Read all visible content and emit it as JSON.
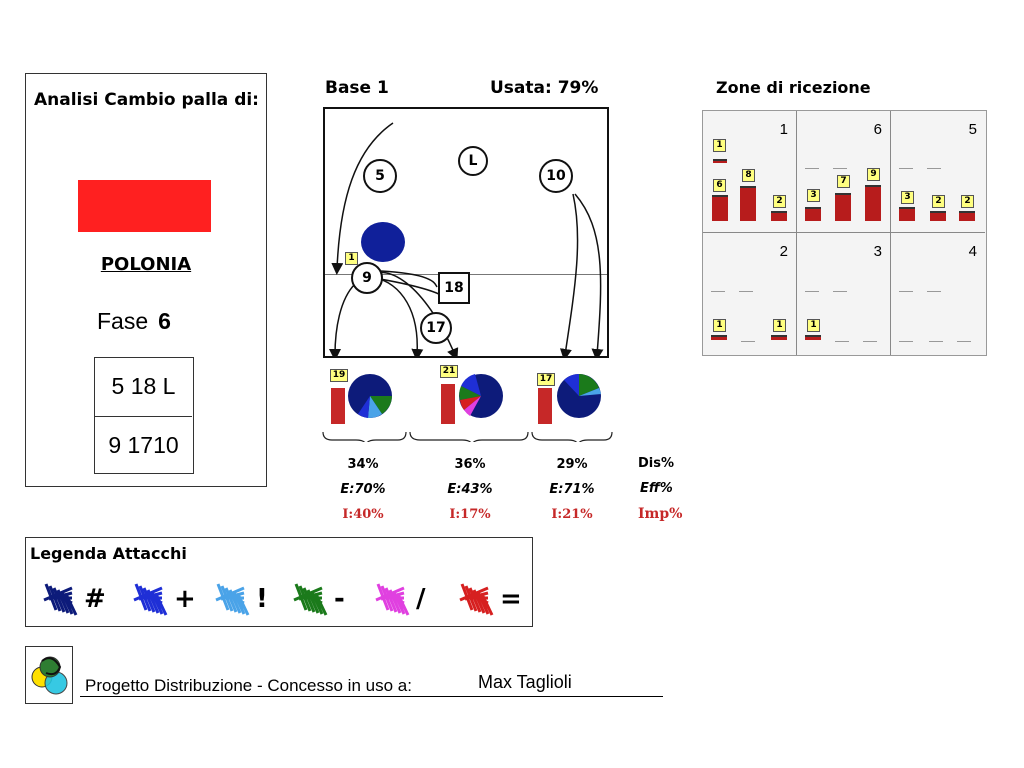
{
  "analysis": {
    "title": "Analisi Cambio palla di:",
    "team_color": "#ff2020",
    "team_name": "POLONIA",
    "fase_label": "Fase",
    "fase_value": "6",
    "rotation": [
      "5 18 L",
      "9 1710"
    ]
  },
  "base": {
    "label": "Base 1",
    "usata": "Usata: 79%"
  },
  "court": {
    "players": [
      "5",
      "L",
      "10",
      "9",
      "18",
      "17"
    ],
    "badge": "1"
  },
  "attacks": [
    {
      "count": "19",
      "dis": "34%",
      "eff": "E:70%",
      "imp": "I:40%"
    },
    {
      "count": "21",
      "dis": "36%",
      "eff": "E:43%",
      "imp": "I:17%"
    },
    {
      "count": "17",
      "dis": "29%",
      "eff": "E:71%",
      "imp": "I:21%"
    }
  ],
  "stats_legend": {
    "dis": "Dis%",
    "eff": "Eff%",
    "imp": "Imp%"
  },
  "zones": {
    "title": "Zone di ricezione",
    "labels": [
      "1",
      "6",
      "5",
      "2",
      "3",
      "4"
    ],
    "bars": {
      "z1": [
        "1",
        "6",
        "8",
        "2"
      ],
      "z6": [
        "3",
        "7",
        "9"
      ],
      "z5": [
        "3",
        "2",
        "2"
      ],
      "z2": [
        "1",
        "1"
      ],
      "z3": [
        "1"
      ]
    }
  },
  "legend": {
    "title": "Legenda Attacchi",
    "items": [
      {
        "symbol": "#",
        "color": "#0d1b7a"
      },
      {
        "symbol": "+",
        "color": "#1f2fd6"
      },
      {
        "symbol": "!",
        "color": "#4aa3e8"
      },
      {
        "symbol": "-",
        "color": "#1b7a1b"
      },
      {
        "symbol": "/",
        "color": "#e040e0"
      },
      {
        "symbol": "=",
        "color": "#d62020"
      }
    ]
  },
  "footer": {
    "text": "Progetto Distribuzione - Concesso in uso a:",
    "user": "Max Taglioli"
  }
}
